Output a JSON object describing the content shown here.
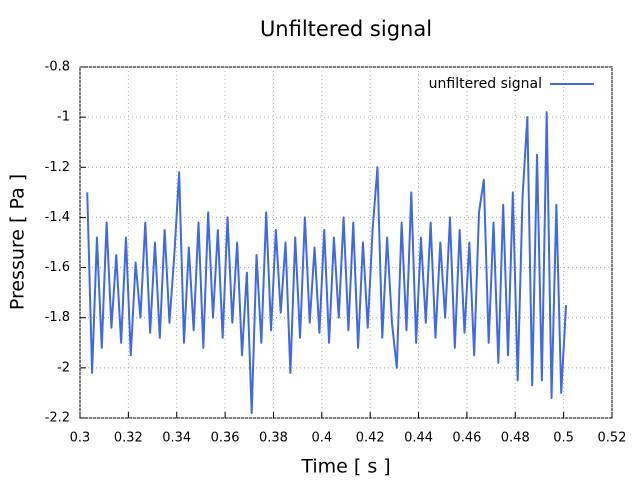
{
  "chart_data": {
    "type": "line",
    "title": "Unfiltered signal",
    "x_label": "Time [ s ]",
    "y_label": "Pressure [ Pa ]",
    "x": [
      0.303,
      0.305,
      0.307,
      0.309,
      0.311,
      0.313,
      0.315,
      0.317,
      0.319,
      0.321,
      0.323,
      0.325,
      0.327,
      0.329,
      0.331,
      0.333,
      0.335,
      0.337,
      0.339,
      0.341,
      0.343,
      0.345,
      0.347,
      0.349,
      0.351,
      0.353,
      0.355,
      0.357,
      0.359,
      0.361,
      0.363,
      0.365,
      0.367,
      0.369,
      0.371,
      0.373,
      0.375,
      0.377,
      0.379,
      0.381,
      0.383,
      0.385,
      0.387,
      0.389,
      0.391,
      0.393,
      0.395,
      0.397,
      0.399,
      0.401,
      0.403,
      0.405,
      0.407,
      0.409,
      0.411,
      0.413,
      0.415,
      0.417,
      0.419,
      0.421,
      0.423,
      0.425,
      0.427,
      0.429,
      0.431,
      0.433,
      0.435,
      0.437,
      0.439,
      0.441,
      0.443,
      0.445,
      0.447,
      0.449,
      0.451,
      0.453,
      0.455,
      0.457,
      0.459,
      0.461,
      0.463,
      0.465,
      0.467,
      0.469,
      0.471,
      0.473,
      0.475,
      0.477,
      0.479,
      0.481,
      0.483,
      0.485,
      0.487,
      0.489,
      0.491,
      0.493,
      0.495,
      0.497,
      0.499,
      0.501
    ],
    "series": [
      {
        "name": "unfiltered signal",
        "color": "#4169e1",
        "values": [
          -1.3,
          -2.02,
          -1.48,
          -1.92,
          -1.42,
          -1.84,
          -1.55,
          -1.9,
          -1.48,
          -1.95,
          -1.58,
          -1.8,
          -1.42,
          -1.86,
          -1.5,
          -1.88,
          -1.45,
          -1.82,
          -1.55,
          -1.22,
          -1.9,
          -1.52,
          -1.85,
          -1.42,
          -1.92,
          -1.38,
          -1.8,
          -1.45,
          -1.88,
          -1.4,
          -1.82,
          -1.5,
          -1.95,
          -1.62,
          -2.18,
          -1.55,
          -1.9,
          -1.38,
          -1.85,
          -1.45,
          -1.78,
          -1.5,
          -2.02,
          -1.48,
          -1.88,
          -1.4,
          -1.82,
          -1.52,
          -1.86,
          -1.45,
          -1.9,
          -1.48,
          -1.8,
          -1.4,
          -1.85,
          -1.42,
          -1.92,
          -1.5,
          -1.84,
          -1.45,
          -1.2,
          -1.88,
          -1.48,
          -1.82,
          -2.0,
          -1.42,
          -1.85,
          -1.3,
          -1.9,
          -1.48,
          -1.82,
          -1.42,
          -1.88,
          -1.5,
          -1.8,
          -1.4,
          -1.92,
          -1.45,
          -1.86,
          -1.5,
          -1.95,
          -1.38,
          -1.25,
          -1.9,
          -1.42,
          -1.98,
          -1.35,
          -1.95,
          -1.3,
          -2.05,
          -1.32,
          -1.0,
          -2.07,
          -1.15,
          -2.05,
          -0.98,
          -2.12,
          -1.35,
          -2.1,
          -1.75
        ]
      }
    ],
    "xlim": [
      0.3,
      0.52
    ],
    "xticks": [
      0.3,
      0.32,
      0.34,
      0.36,
      0.38,
      0.4,
      0.42,
      0.44,
      0.46,
      0.48,
      0.5,
      0.52
    ],
    "ylim": [
      -2.2,
      -0.8
    ],
    "yticks": [
      -2.2,
      -2,
      -1.8,
      -1.6,
      -1.4,
      -1.2,
      -1,
      -0.8
    ],
    "grid": true,
    "legend": "top-right"
  }
}
